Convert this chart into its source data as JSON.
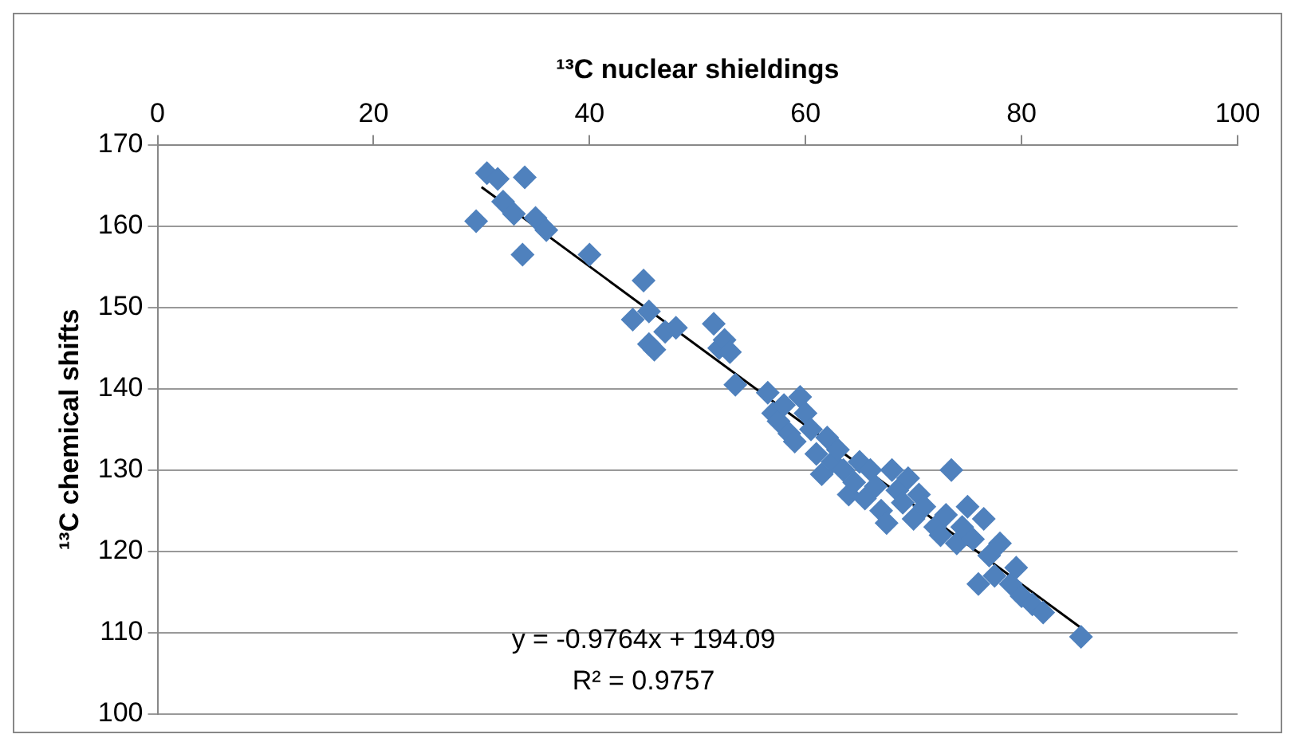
{
  "chart_data": {
    "type": "scatter",
    "xlabel": "¹³C nuclear shieldings",
    "ylabel": "¹³C chemical shifts",
    "xlim": [
      0,
      100
    ],
    "xticks": [
      0,
      20,
      40,
      60,
      80,
      100
    ],
    "ylim": [
      100,
      170
    ],
    "yticks": [
      100,
      110,
      120,
      130,
      140,
      150,
      160,
      170
    ],
    "grid": "y",
    "legend": false,
    "marker": "diamond",
    "series": [
      {
        "color": "#4f81bd",
        "x": [
          29.5,
          30.5,
          31.5,
          32,
          33,
          33.8,
          34,
          35,
          36,
          40,
          44,
          45,
          45.5,
          45.5,
          46,
          47,
          48,
          51.5,
          52,
          52.5,
          53,
          53.5,
          56.5,
          57,
          57.5,
          58,
          58.5,
          59,
          59.5,
          60,
          60.5,
          61,
          61.5,
          62,
          62.5,
          63,
          63.5,
          64,
          64.5,
          65,
          65.5,
          66,
          66.5,
          67,
          67.5,
          68,
          68.5,
          69,
          69.5,
          70,
          70.5,
          71,
          72,
          72.5,
          73,
          73.5,
          74,
          74.5,
          75,
          75.5,
          76,
          76.5,
          77,
          77.5,
          78,
          79,
          79.5,
          80,
          81,
          82,
          85.5
        ],
        "values": [
          160.6,
          166.5,
          165.8,
          163,
          161.5,
          156.5,
          166,
          161,
          159.5,
          156.5,
          148.5,
          153.3,
          149.5,
          145.5,
          144.8,
          147,
          147.5,
          148,
          145,
          146,
          144.5,
          140.5,
          139.5,
          137,
          136,
          138,
          134.5,
          133.5,
          139,
          137,
          135,
          132,
          129.5,
          134,
          131,
          132.5,
          130,
          127,
          128.5,
          131,
          126.5,
          130,
          128,
          125,
          123.5,
          130,
          127.5,
          126,
          129,
          124,
          127,
          125.5,
          123,
          122,
          124.5,
          130,
          121,
          123,
          125.5,
          121.5,
          116,
          124,
          119.5,
          117,
          121,
          116,
          118,
          114.5,
          113.5,
          112.5,
          109.5
        ]
      },
      {
        "type": "line",
        "color": "#000000",
        "marker": "none",
        "x": [
          30,
          85.5
        ],
        "values": [
          164.8,
          110.6
        ]
      }
    ],
    "annotations": [
      "y = -0.9764x + 194.09",
      "R² = 0.9757"
    ]
  }
}
